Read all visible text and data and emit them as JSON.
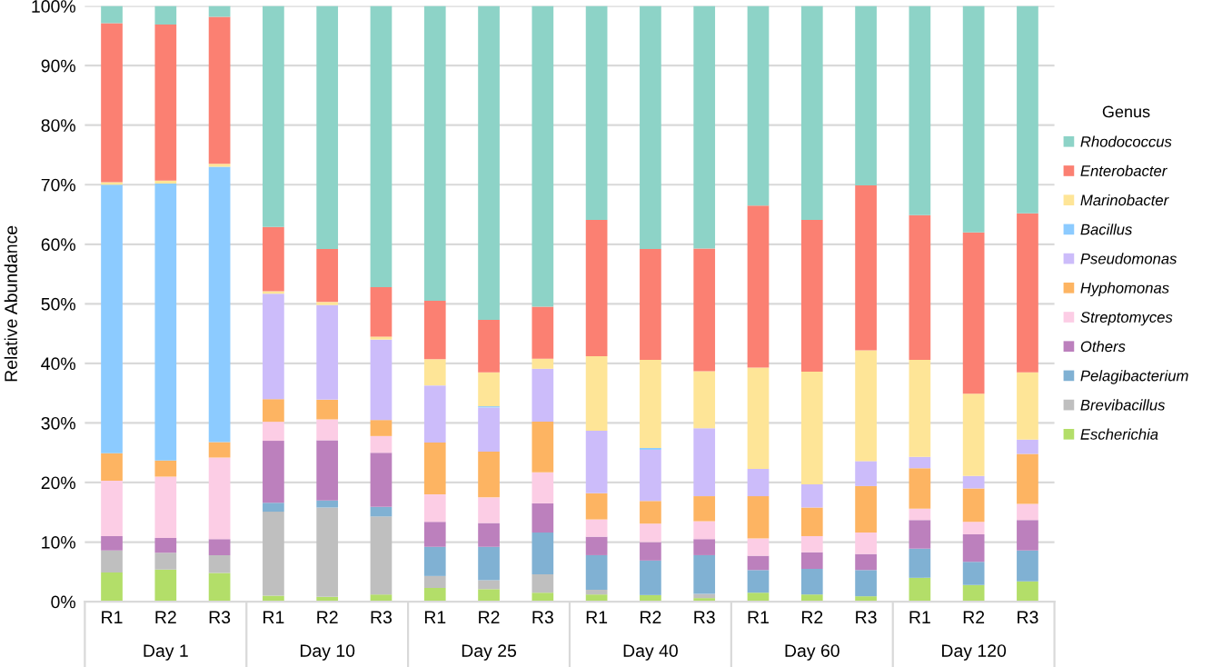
{
  "chart_data": {
    "type": "bar",
    "stacked": true,
    "ylabel": "Relative Abundance",
    "legend_title": "Genus",
    "legend": "right",
    "grid": "y",
    "categories": [
      "R1",
      "R2",
      "R3",
      "R1",
      "R2",
      "R3",
      "R1",
      "R2",
      "R3",
      "R1",
      "R2",
      "R3",
      "R1",
      "R2",
      "R3",
      "R1",
      "R2",
      "R3"
    ],
    "annotations": [
      "Day 1",
      "Day 10",
      "Day 25",
      "Day 40",
      "Day 60",
      "Day 120"
    ],
    "ylim": [
      0,
      100
    ],
    "yticks": [
      {
        "value": 0,
        "label": "0%"
      },
      {
        "value": 10,
        "label": "10%"
      },
      {
        "value": 20,
        "label": "20%"
      },
      {
        "value": 30,
        "label": "30%"
      },
      {
        "value": 40,
        "label": "40%"
      },
      {
        "value": 50,
        "label": "50%"
      },
      {
        "value": 60,
        "label": "60%"
      },
      {
        "value": 70,
        "label": "70%"
      },
      {
        "value": 80,
        "label": "80%"
      },
      {
        "value": 90,
        "label": "90%"
      },
      {
        "value": 100,
        "label": "100%"
      }
    ],
    "series": [
      {
        "name": "Escherichia",
        "color": "#b3de69",
        "values": [
          4.9,
          5.4,
          4.8,
          1.0,
          0.8,
          1.2,
          2.3,
          2.1,
          1.5,
          1.2,
          1.1,
          0.6,
          1.5,
          1.2,
          0.9,
          4.0,
          2.8,
          3.4
        ]
      },
      {
        "name": "Brevibacillus",
        "color": "#bfbfbf",
        "values": [
          3.7,
          2.8,
          3.0,
          14.1,
          15.0,
          13.1,
          2.0,
          1.5,
          3.1,
          0.8,
          null,
          0.7,
          0,
          0,
          0,
          0,
          0,
          0
        ]
      },
      {
        "name": "Pelagibacterium",
        "color": "#80b1d3",
        "values": [
          0,
          0,
          0,
          1.5,
          1.2,
          1.6,
          4.9,
          5.6,
          7.0,
          5.8,
          5.8,
          6.5,
          3.8,
          4.3,
          4.4,
          4.9,
          3.9,
          5.2
        ]
      },
      {
        "name": "Others",
        "color": "#bc80bd",
        "values": [
          2.4,
          2.5,
          2.7,
          10.4,
          10.1,
          9.1,
          4.2,
          4.0,
          4.9,
          3.1,
          3.1,
          2.7,
          2.4,
          2.8,
          2.7,
          4.8,
          4.6,
          5.1
        ]
      },
      {
        "name": "Streptomyces",
        "color": "#fccde5",
        "values": [
          9.3,
          10.3,
          13.7,
          3.2,
          3.5,
          2.8,
          4.6,
          4.3,
          5.2,
          2.9,
          3.1,
          3.0,
          2.9,
          2.7,
          3.6,
          1.9,
          2.1,
          2.7
        ]
      },
      {
        "name": "Hyphomonas",
        "color": "#fdb462",
        "values": [
          4.6,
          2.7,
          2.6,
          3.8,
          3.3,
          2.7,
          8.7,
          7.7,
          8.5,
          4.4,
          3.8,
          4.2,
          7.1,
          4.8,
          7.8,
          6.8,
          5.6,
          8.4
        ]
      },
      {
        "name": "Pseudomonas",
        "color": "#ccbcfa",
        "values": [
          0,
          0,
          0,
          17.7,
          15.9,
          13.5,
          9.6,
          7.4,
          8.9,
          10.5,
          8.6,
          11.4,
          4.6,
          3.9,
          4.2,
          1.9,
          2.1,
          2.4
        ]
      },
      {
        "name": "Bacillus",
        "color": "#8ccbff",
        "values": [
          45.1,
          46.5,
          46.2,
          0,
          0,
          0,
          0,
          0.2,
          0,
          0,
          0.3,
          0,
          0,
          0,
          0,
          0,
          0,
          0
        ]
      },
      {
        "name": "Marinobacter",
        "color": "#fee597",
        "values": [
          0.4,
          0.5,
          0.5,
          0.4,
          0.5,
          0.5,
          4.4,
          5.7,
          1.7,
          12.5,
          14.8,
          9.6,
          17.0,
          18.9,
          18.6,
          16.3,
          13.8,
          11.3
        ]
      },
      {
        "name": "Enterobacter",
        "color": "#fb8072",
        "values": [
          26.7,
          26.2,
          24.7,
          10.8,
          8.9,
          8.3,
          9.8,
          8.8,
          8.7,
          22.9,
          18.6,
          20.6,
          27.2,
          25.5,
          27.7,
          24.3,
          27.1,
          26.7
        ]
      },
      {
        "name": "Rhodococcus",
        "color": "#8dd3c7",
        "values": [
          2.9,
          3.1,
          1.8,
          37.1,
          40.8,
          47.2,
          49.5,
          52.7,
          50.5,
          35.9,
          40.8,
          40.7,
          33.5,
          35.9,
          30.1,
          35.1,
          38.0,
          34.8
        ]
      }
    ]
  }
}
